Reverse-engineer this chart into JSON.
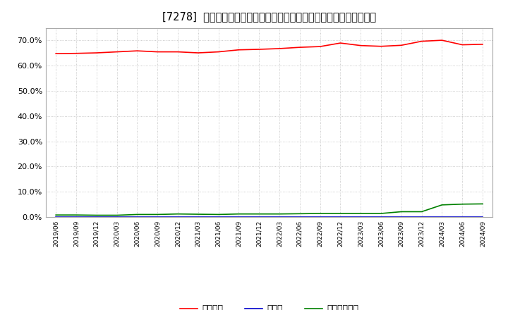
{
  "title": "[7278]  自己資本、のれん、繰延税金資産の総資産に対する比率の推移",
  "x_labels": [
    "2019/06",
    "2019/09",
    "2019/12",
    "2020/03",
    "2020/06",
    "2020/09",
    "2020/12",
    "2021/03",
    "2021/06",
    "2021/09",
    "2021/12",
    "2022/03",
    "2022/06",
    "2022/09",
    "2022/12",
    "2023/03",
    "2023/06",
    "2023/09",
    "2023/12",
    "2024/03",
    "2024/06",
    "2024/09"
  ],
  "equity_ratio": [
    0.648,
    0.649,
    0.651,
    0.655,
    0.659,
    0.655,
    0.655,
    0.651,
    0.655,
    0.663,
    0.665,
    0.668,
    0.673,
    0.676,
    0.69,
    0.68,
    0.677,
    0.681,
    0.697,
    0.701,
    0.683,
    0.685
  ],
  "goodwill_ratio": [
    0.0,
    0.0,
    0.0,
    0.0,
    0.0,
    0.0,
    0.0,
    0.0,
    0.0,
    0.0,
    0.0,
    0.0,
    0.0,
    0.0,
    0.0,
    0.0,
    0.0,
    0.0,
    0.0,
    0.0,
    0.0,
    0.0
  ],
  "deferred_tax_ratio": [
    0.008,
    0.008,
    0.007,
    0.007,
    0.01,
    0.01,
    0.012,
    0.011,
    0.01,
    0.012,
    0.012,
    0.012,
    0.013,
    0.014,
    0.014,
    0.014,
    0.014,
    0.021,
    0.021,
    0.048,
    0.051,
    0.052
  ],
  "equity_color": "#ff0000",
  "goodwill_color": "#0000cc",
  "deferred_tax_color": "#008000",
  "background_color": "#ffffff",
  "grid_color": "#bbbbbb",
  "ylim": [
    0.0,
    0.75
  ],
  "yticks": [
    0.0,
    0.1,
    0.2,
    0.3,
    0.4,
    0.5,
    0.6,
    0.7
  ],
  "legend_labels": [
    "自己資本",
    "のれん",
    "繰延税金資産"
  ]
}
